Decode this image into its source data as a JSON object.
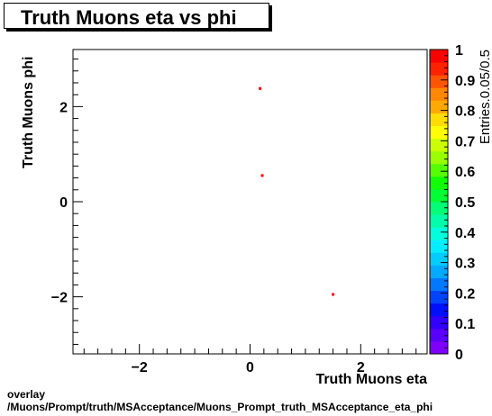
{
  "chart_data": {
    "type": "scatter",
    "title": "Truth Muons eta vs phi",
    "xlabel": "Truth Muons eta",
    "ylabel": "Truth Muons phi",
    "zlabel": "Entries.0.05/0.5",
    "xlim": [
      -3.2,
      3.2
    ],
    "ylim": [
      -3.2,
      3.2
    ],
    "zlim": [
      0,
      1
    ],
    "x_ticks": [
      -2,
      0,
      2
    ],
    "x_tick_labels": [
      "−2",
      "0",
      "2"
    ],
    "y_ticks": [
      -2,
      0,
      2
    ],
    "y_tick_labels": [
      "−2",
      "0",
      "2"
    ],
    "z_ticks": [
      0,
      0.1,
      0.2,
      0.3,
      0.4,
      0.5,
      0.6,
      0.7,
      0.8,
      0.9,
      1
    ],
    "z_tick_labels": [
      "0",
      "0.1",
      "0.2",
      "0.3",
      "0.4",
      "0.5",
      "0.6",
      "0.7",
      "0.8",
      "0.9",
      "1"
    ],
    "points": [
      {
        "x": 0.18,
        "y": 2.38,
        "z": 1
      },
      {
        "x": 0.22,
        "y": 0.55,
        "z": 1
      },
      {
        "x": 1.5,
        "y": -1.95,
        "z": 1
      }
    ],
    "palette": [
      "#7f00ff",
      "#5a00ff",
      "#3300ff",
      "#0010ff",
      "#0044ff",
      "#0078ff",
      "#00aaff",
      "#00ccff",
      "#00eeff",
      "#00ffdd",
      "#00ffaa",
      "#00ff77",
      "#00ff33",
      "#11ff00",
      "#55ff00",
      "#99ff00",
      "#ccff00",
      "#ffff00",
      "#ffdd00",
      "#ffaa00",
      "#ff8800",
      "#ff5500",
      "#ff2200",
      "#ff0000"
    ],
    "marker_color": "#ff0000",
    "grid": false
  },
  "footer": {
    "line1": "overlay",
    "line2": "/Muons/Prompt/truth/MSAcceptance/Muons_Prompt_truth_MSAcceptance_eta_phi"
  }
}
